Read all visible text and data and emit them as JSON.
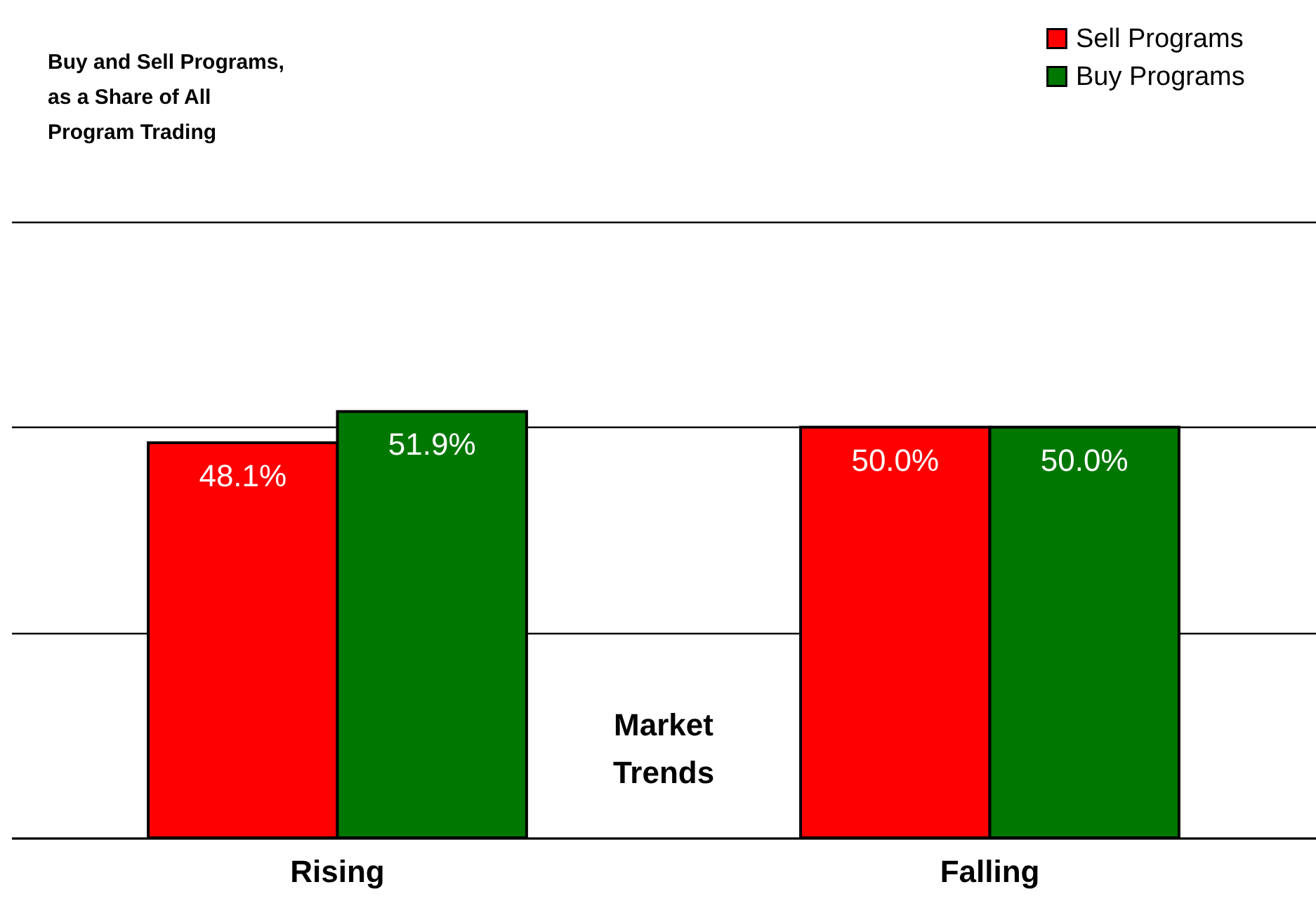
{
  "chart_data": {
    "type": "bar",
    "title": "Buy and Sell Programs, as a Share of All Program Trading",
    "annotations": [
      "Market Trends"
    ],
    "categories": [
      "Rising",
      "Falling"
    ],
    "series": [
      {
        "name": "Sell Programs",
        "color": "#ff0000",
        "values": [
          48.1,
          50.0
        ],
        "value_labels": [
          "48.1%",
          "50.0%"
        ]
      },
      {
        "name": "Buy Programs",
        "color": "#007700",
        "values": [
          51.9,
          50.0
        ],
        "value_labels": [
          "51.9%",
          "50.0%"
        ]
      }
    ],
    "ylim": [
      0,
      75
    ],
    "yticks": [
      0,
      25,
      50,
      75
    ],
    "grid": "y",
    "tick_labels": "x",
    "legend": "top right"
  }
}
